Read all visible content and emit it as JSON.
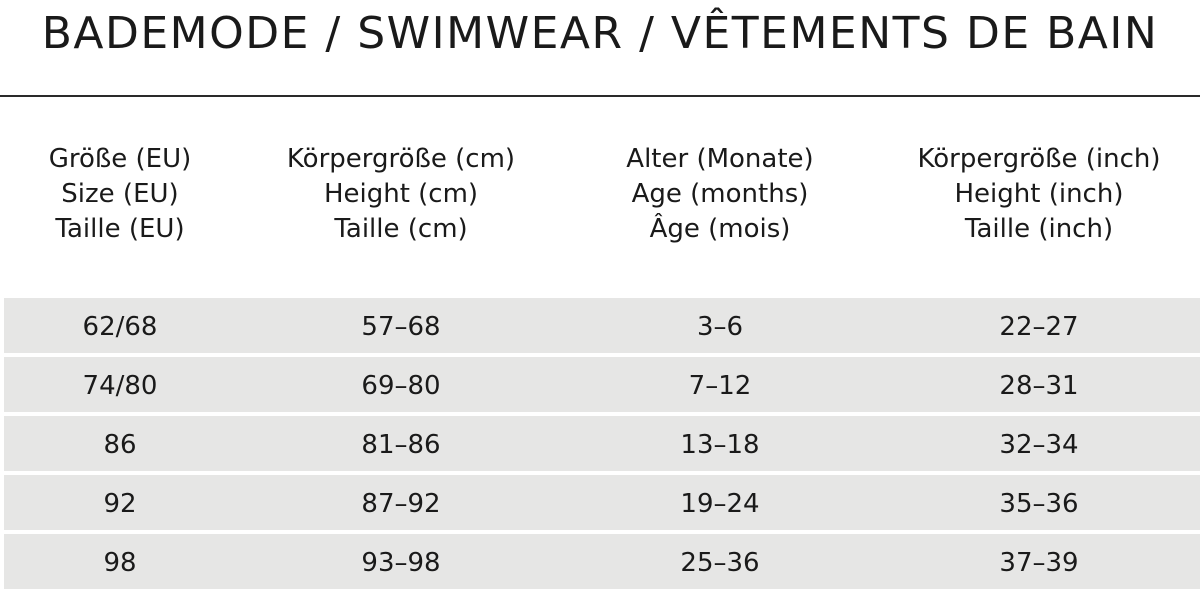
{
  "title": "BADEMODE / SWIMWEAR / VÊTEMENTS DE BAIN",
  "columns": [
    {
      "lines": [
        "Größe (EU)",
        "Size (EU)",
        "Taille (EU)"
      ]
    },
    {
      "lines": [
        "Körpergröße (cm)",
        "Height (cm)",
        "Taille (cm)"
      ]
    },
    {
      "lines": [
        "Alter (Monate)",
        "Age (months)",
        "Âge (mois)"
      ]
    },
    {
      "lines": [
        "Körpergröße (inch)",
        "Height (inch)",
        "Taille (inch)"
      ]
    }
  ],
  "rows": [
    [
      "62/68",
      "57–68",
      "3–6",
      "22–27"
    ],
    [
      "74/80",
      "69–80",
      "7–12",
      "28–31"
    ],
    [
      "86",
      "81–86",
      "13–18",
      "32–34"
    ],
    [
      "92",
      "87–92",
      "19–24",
      "35–36"
    ],
    [
      "98",
      "93–98",
      "25–36",
      "37–39"
    ]
  ],
  "colors": {
    "row_background": "#e6e6e5",
    "text": "#1a1a1a",
    "rule": "#2a2a2a"
  }
}
